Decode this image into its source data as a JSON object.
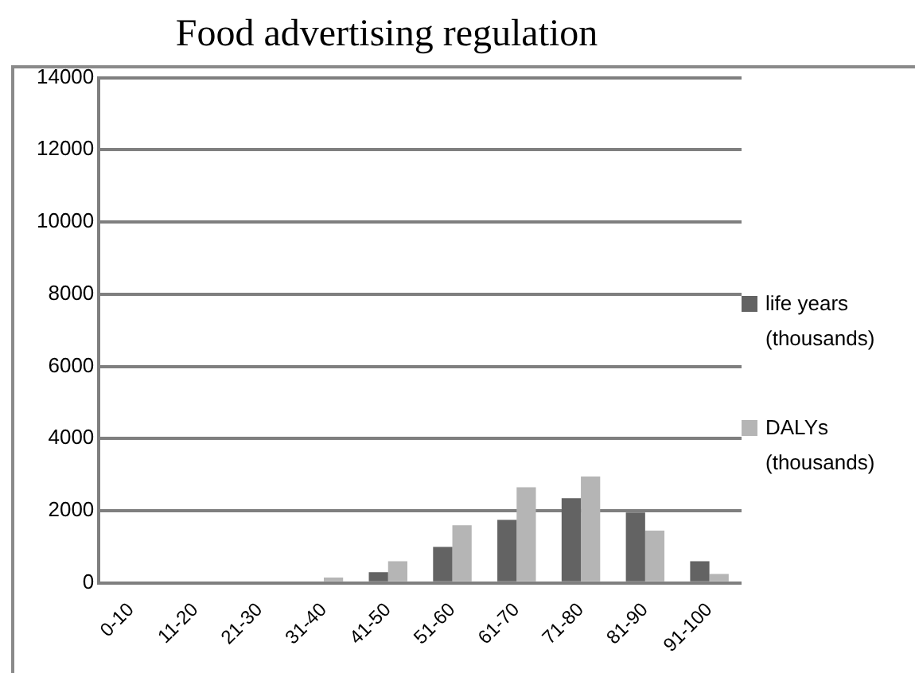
{
  "chart_data": {
    "type": "bar",
    "title": "Food advertising regulation",
    "categories": [
      "0-10",
      "11-20",
      "21-30",
      "31-40",
      "41-50",
      "51-60",
      "61-70",
      "71-80",
      "81-90",
      "91-100"
    ],
    "series": [
      {
        "name": "life years (thousands)",
        "color": "#636363",
        "values": [
          0,
          0,
          0,
          0,
          300,
          1000,
          1750,
          2350,
          1950,
          600
        ]
      },
      {
        "name": "DALYs (thousands)",
        "color": "#b5b5b5",
        "values": [
          0,
          0,
          0,
          150,
          600,
          1600,
          2650,
          2950,
          1450,
          250
        ]
      }
    ],
    "ylim": [
      0,
      14000
    ],
    "yticks": [
      0,
      2000,
      4000,
      6000,
      8000,
      10000,
      12000,
      14000
    ],
    "grid": "y",
    "legend": "right"
  }
}
